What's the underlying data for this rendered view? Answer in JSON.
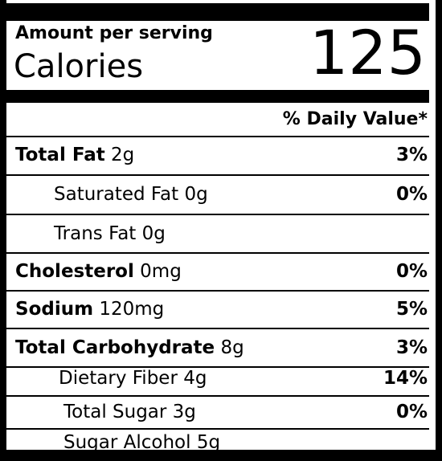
{
  "header": {
    "amount_per_serving": "Amount per serving",
    "calories_label": "Calories",
    "calories_value": "125",
    "daily_value_header": "% Daily Value*"
  },
  "rows": [
    {
      "name": "Total Fat",
      "amount": "2g",
      "dv": "3%",
      "bold": true
    },
    {
      "name": "Saturated Fat",
      "amount": "0g",
      "dv": "0%",
      "bold": false
    },
    {
      "name": "Trans Fat",
      "amount": "0g",
      "dv": "",
      "bold": false
    },
    {
      "name": "Cholesterol",
      "amount": "0mg",
      "dv": "0%",
      "bold": true
    },
    {
      "name": "Sodium",
      "amount": "120mg",
      "dv": "5%",
      "bold": true
    },
    {
      "name": "Total Carbohydrate",
      "amount": "8g",
      "dv": "3%",
      "bold": true
    },
    {
      "name": "Dietary Fiber",
      "amount": "4g",
      "dv": "14%",
      "bold": false
    },
    {
      "name": "Total Sugar",
      "amount": "3g",
      "dv": "0%",
      "bold": false
    },
    {
      "name": "Sugar Alcohol",
      "amount": "5g",
      "dv": "",
      "bold": false
    }
  ]
}
